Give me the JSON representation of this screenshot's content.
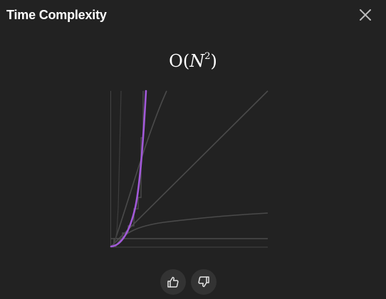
{
  "header": {
    "title": "Time Complexity"
  },
  "complexity": {
    "prefix": "O(",
    "variable": "N",
    "exponent": "2",
    "suffix": ")"
  },
  "chart": {
    "highlighted_curve": "N^2",
    "background_curves": [
      "1",
      "log N",
      "N",
      "N log N",
      "2^N",
      "N!"
    ],
    "colors": {
      "highlight": "#a259d9",
      "muted": "#4a4a4a",
      "background": "#222222"
    }
  },
  "feedback": {
    "like_icon": "thumbs-up-icon",
    "dislike_icon": "thumbs-down-icon"
  },
  "icons": {
    "close": "close-icon"
  }
}
